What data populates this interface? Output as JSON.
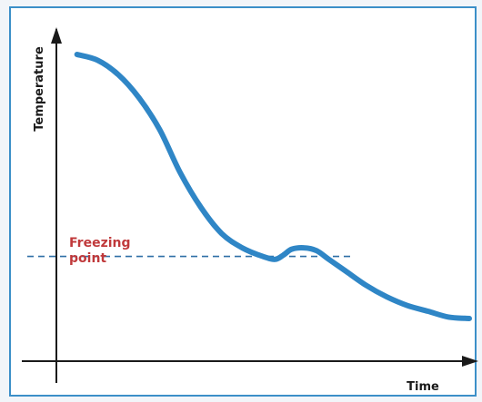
{
  "chart_data": {
    "type": "line",
    "xlabel": "Time",
    "ylabel": "Temperature",
    "annotation": "Freezing point",
    "annotation_lines": [
      "Freezing",
      "point"
    ],
    "reference_line": {
      "y": 0.3,
      "style": "dashed",
      "x_extent": 0.72
    },
    "axes_ticks": false,
    "xlim": [
      0,
      1
    ],
    "ylim": [
      0,
      1
    ],
    "series": [
      {
        "x": [
          0.05,
          0.1,
          0.15,
          0.2,
          0.25,
          0.3,
          0.35,
          0.4,
          0.45,
          0.5,
          0.53,
          0.55,
          0.57,
          0.6,
          0.63,
          0.66,
          0.7,
          0.75,
          0.8,
          0.85,
          0.9,
          0.95,
          1.0
        ],
        "y": [
          1.0,
          0.98,
          0.93,
          0.85,
          0.74,
          0.59,
          0.47,
          0.38,
          0.33,
          0.3,
          0.29,
          0.305,
          0.325,
          0.33,
          0.32,
          0.29,
          0.25,
          0.2,
          0.16,
          0.13,
          0.11,
          0.09,
          0.085
        ]
      }
    ],
    "colors": {
      "line": "#2f86c6",
      "axis": "#1a1a1a",
      "annotation": "#c0393b",
      "reference": "#2f6fa6"
    }
  }
}
